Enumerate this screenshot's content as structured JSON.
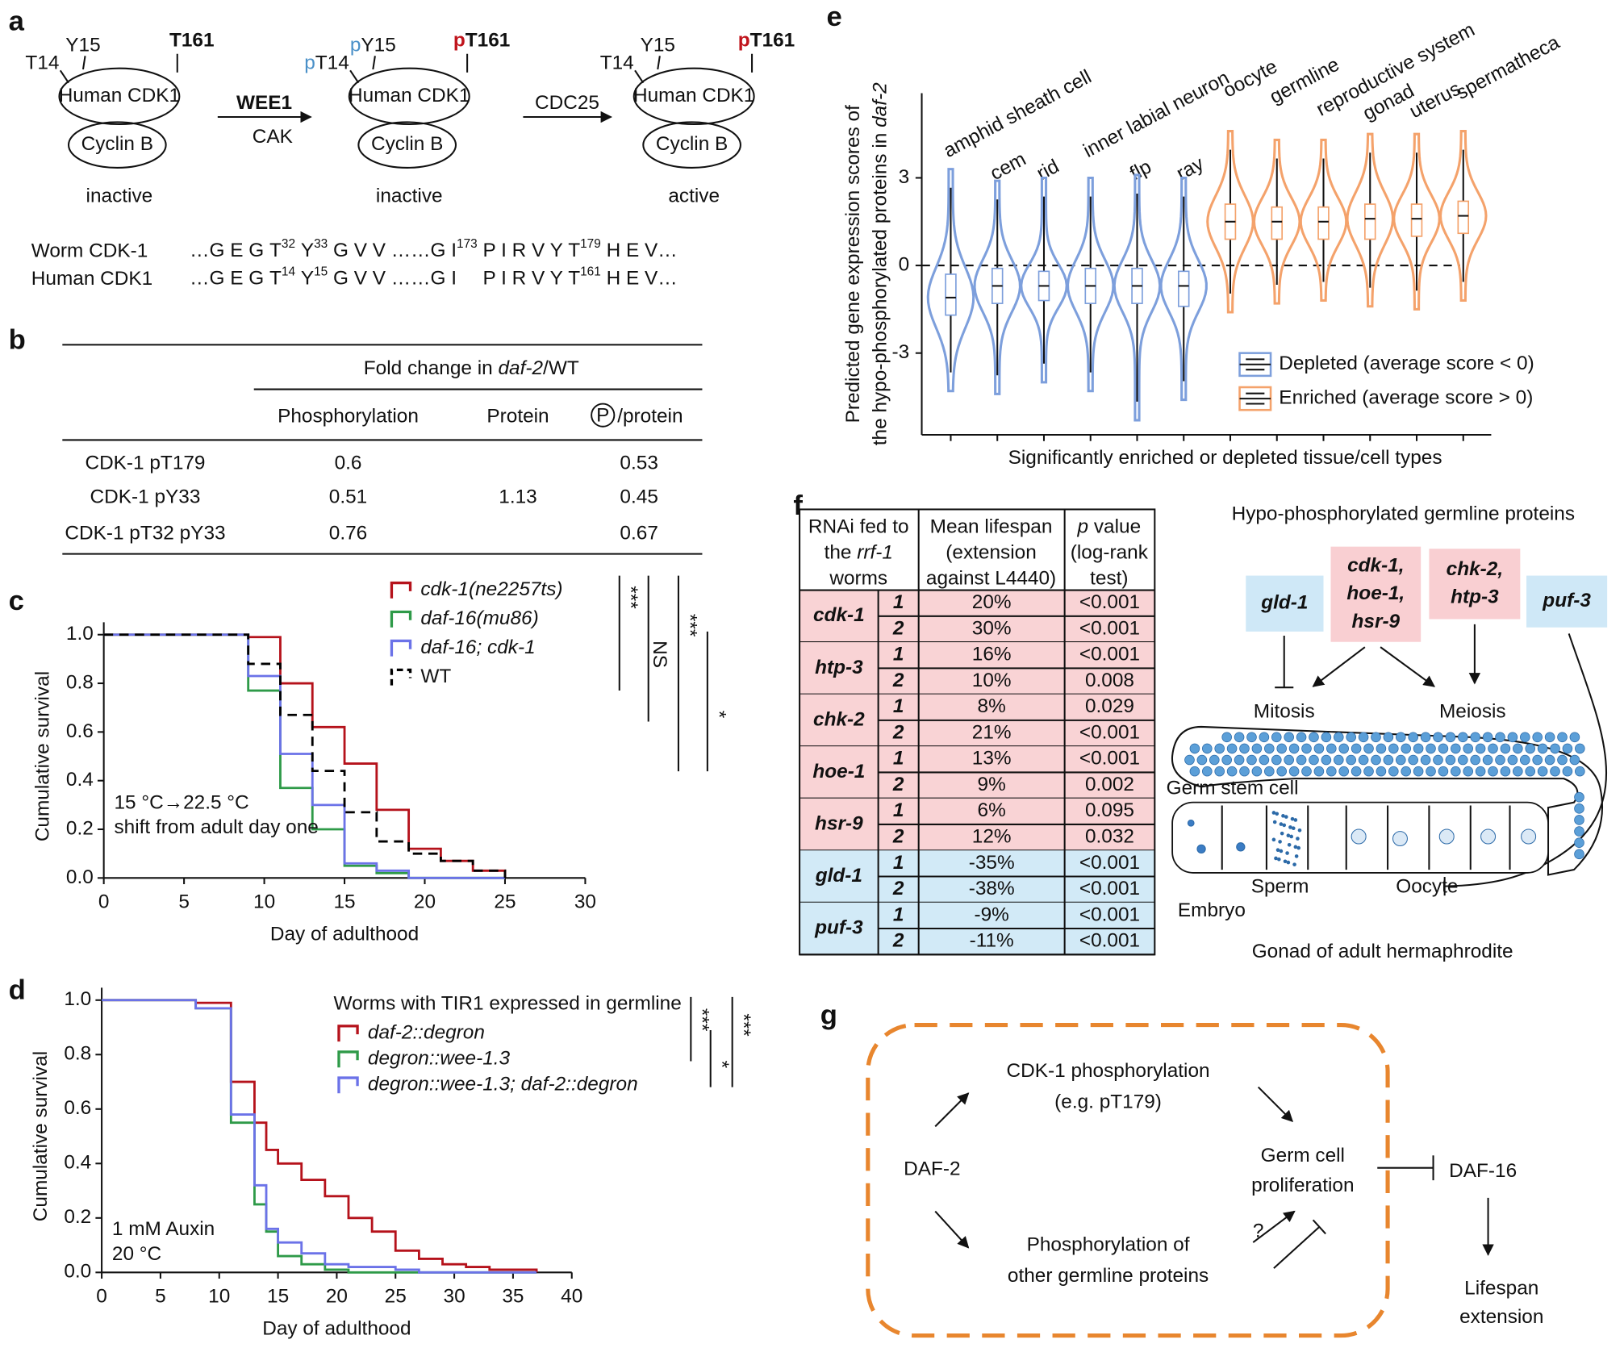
{
  "panel_labels": [
    "a",
    "b",
    "c",
    "d",
    "e",
    "f",
    "g"
  ],
  "panel_a": {
    "complexes": [
      {
        "kinase": "Human CDK1",
        "cyclin": "Cyclin B",
        "state": "inactive",
        "sites": [
          {
            "text": "T14"
          },
          {
            "text": "Y15"
          },
          {
            "text": "T161",
            "bold": true
          }
        ]
      },
      {
        "kinase": "Human CDK1",
        "cyclin": "Cyclin B",
        "state": "inactive",
        "sites": [
          {
            "p": "p",
            "p_color": "#4a90c8",
            "text": "T14"
          },
          {
            "p": "p",
            "p_color": "#4a90c8",
            "text": "Y15"
          },
          {
            "p": "p",
            "p_color": "#c0141c",
            "text": "T161",
            "bold": true
          }
        ]
      },
      {
        "kinase": "Human CDK1",
        "cyclin": "Cyclin B",
        "state": "active",
        "sites": [
          {
            "text": "T14"
          },
          {
            "text": "Y15"
          },
          {
            "p": "p",
            "p_color": "#c0141c",
            "text": "T161",
            "bold": true
          }
        ]
      }
    ],
    "arrows": [
      {
        "above": "WEE1",
        "above_color": "#c0141c",
        "below": "CAK",
        "below_color": "#4a90c8"
      },
      {
        "above": "CDC25"
      }
    ],
    "sequences": [
      {
        "name": "Worm CDK-1",
        "parts": [
          {
            "text": "…G E G "
          },
          {
            "text": "T",
            "sup": "32",
            "color": "#4a90c8"
          },
          {
            "text": " "
          },
          {
            "text": "Y",
            "sup": "33",
            "color": "#4a90c8"
          },
          {
            "text": " G V V ……G I",
            "sup": "173"
          },
          {
            "text": " P I R V Y "
          },
          {
            "text": "T",
            "sup": "179",
            "color": "#c0141c"
          },
          {
            "text": " H E V…"
          }
        ]
      },
      {
        "name": "Human CDK1",
        "parts": [
          {
            "text": "…G E G "
          },
          {
            "text": "T",
            "sup": "14",
            "color": "#4a90c8"
          },
          {
            "text": " "
          },
          {
            "text": "Y",
            "sup": "15",
            "color": "#4a90c8"
          },
          {
            "text": " G V V ……G I"
          },
          {
            "text": " P I R V Y "
          },
          {
            "text": "T",
            "sup": "161",
            "color": "#c0141c"
          },
          {
            "text": " H E V…"
          }
        ]
      }
    ]
  },
  "panel_b": {
    "header": [
      {
        "text": "Fold change in "
      },
      {
        "text": "daf-2",
        "italic": true
      },
      {
        "text": "/WT"
      }
    ],
    "columns": [
      "Phosphorylation",
      "Protein"
    ],
    "ratio_symbol": "P",
    "ratio_column": "/protein",
    "rows": [
      {
        "name": "CDK-1 pT179",
        "values": [
          0.6,
          null,
          0.53
        ]
      },
      {
        "name": "CDK-1 pY33",
        "values": [
          0.51,
          1.13,
          0.45
        ]
      },
      {
        "name": "CDK-1 pT32 pY33",
        "values": [
          0.76,
          null,
          0.67
        ]
      }
    ]
  },
  "chart_data": [
    {
      "type": "step",
      "x": [
        0,
        9,
        11,
        13,
        15,
        17,
        19,
        21,
        23,
        25
      ],
      "series": [
        {
          "name": "cdk-1(ne2257ts)",
          "italic": true,
          "color": "#b5121b",
          "values": [
            1.0,
            0.99,
            0.8,
            0.62,
            0.47,
            0.28,
            0.12,
            0.07,
            0.03,
            0
          ]
        },
        {
          "name": "daf-16(mu86)",
          "italic": true,
          "color": "#2e9a48",
          "values": [
            1.0,
            0.77,
            0.37,
            0.2,
            0.05,
            0.02,
            0,
            0,
            0,
            0
          ]
        },
        {
          "name": "daf-16; cdk-1",
          "italic": true,
          "color": "#6b72e8",
          "values": [
            1.0,
            0.83,
            0.51,
            0.3,
            0.06,
            0.03,
            0,
            0,
            0,
            0
          ]
        },
        {
          "name": "WT",
          "color": "#000000",
          "dashed": true,
          "values": [
            1.0,
            0.88,
            0.67,
            0.44,
            0.27,
            0.15,
            0.1,
            0.07,
            0.03,
            0
          ]
        }
      ],
      "xlim": [
        0,
        30
      ],
      "xticks": [
        0,
        5,
        10,
        15,
        20,
        25,
        30
      ],
      "ylim": [
        0,
        1
      ],
      "yticks": [
        {
          "value": 0,
          "label": "0.0"
        },
        0.2,
        0.4,
        0.6,
        0.8,
        {
          "value": 1,
          "label": "1.0"
        }
      ],
      "xlabel": "Day of adulthood",
      "ylabel": "Cumulative survival",
      "annotations": [
        "15 °C→22.5 °C",
        "shift from adult day one"
      ],
      "significance": [
        "***",
        "NS",
        "***",
        "*"
      ]
    },
    {
      "type": "step",
      "x": [
        0,
        8,
        11,
        13,
        14,
        15,
        17,
        19,
        21,
        23,
        25,
        27,
        29,
        31,
        33,
        35,
        37
      ],
      "legend_title": "Worms with TIR1 expressed in germline",
      "series": [
        {
          "name": "daf-2::degron",
          "italic": true,
          "color": "#b5121b",
          "values": [
            1.0,
            0.99,
            0.7,
            0.55,
            0.45,
            0.4,
            0.34,
            0.28,
            0.2,
            0.15,
            0.08,
            0.05,
            0.03,
            0.02,
            0.01,
            0.01,
            0
          ]
        },
        {
          "name": "degron::wee-1.3",
          "italic": true,
          "color": "#2e9a48",
          "values": [
            1.0,
            0.97,
            0.55,
            0.25,
            0.15,
            0.06,
            0.03,
            0.01,
            0,
            0,
            0,
            0,
            0,
            0,
            0,
            0,
            0
          ]
        },
        {
          "name": "degron::wee-1.3; daf-2::degron",
          "italic": true,
          "color": "#6b72e8",
          "values": [
            1.0,
            0.97,
            0.58,
            0.32,
            0.16,
            0.11,
            0.07,
            0.03,
            0.02,
            0.02,
            0.01,
            0,
            0,
            0,
            0,
            0,
            0
          ]
        }
      ],
      "xlim": [
        0,
        40
      ],
      "xticks": [
        0,
        5,
        10,
        15,
        20,
        25,
        30,
        35,
        40
      ],
      "ylim": [
        0,
        1
      ],
      "yticks": [
        {
          "value": 0,
          "label": "0.0"
        },
        0.2,
        0.4,
        0.6,
        0.8,
        {
          "value": 1,
          "label": "1.0"
        }
      ],
      "xlabel": "Day of adulthood",
      "ylabel": "Cumulative survival",
      "annotations": [
        "1 mM Auxin",
        "20 °C"
      ],
      "significance": [
        "***",
        "*",
        "***"
      ]
    },
    {
      "type": "violin",
      "series": [
        {
          "name": "Depleted (average score < 0)",
          "color": "#7d9fdc",
          "categories": [
            "amphid sheath cell",
            "cem",
            "rid",
            "inner labial neuron",
            "flp",
            "ray"
          ],
          "values": [
            -1.1,
            -0.7,
            -0.7,
            -0.7,
            -0.7,
            -0.7
          ],
          "q1": [
            -1.7,
            -1.3,
            -1.2,
            -1.3,
            -1.3,
            -1.4
          ],
          "q3": [
            -0.3,
            -0.1,
            -0.2,
            -0.1,
            -0.1,
            -0.2
          ],
          "min": [
            -4.3,
            -4.4,
            -4.0,
            -4.3,
            -5.3,
            -4.6
          ],
          "max": [
            3.3,
            2.9,
            3.0,
            3.0,
            3.1,
            3.0
          ]
        },
        {
          "name": "Enriched (average score > 0)",
          "color": "#f4a26b",
          "categories": [
            "oocyte",
            "germline",
            "reproductive system",
            "gonad",
            "uterus",
            "spermatheca"
          ],
          "values": [
            1.5,
            1.5,
            1.5,
            1.6,
            1.6,
            1.7
          ],
          "q1": [
            0.9,
            0.9,
            0.9,
            0.9,
            1.0,
            1.1
          ],
          "q3": [
            2.1,
            2.0,
            2.0,
            2.1,
            2.1,
            2.2
          ],
          "min": [
            -1.6,
            -1.3,
            -1.2,
            -1.4,
            -1.5,
            -1.2
          ],
          "max": [
            4.6,
            4.3,
            4.3,
            4.5,
            4.5,
            4.6
          ]
        }
      ],
      "ylim": [
        -5.8,
        5.9
      ],
      "yticks": [
        -3,
        0,
        3
      ],
      "hline": 0,
      "xlabel": "Significantly enriched or depleted tissue/cell types",
      "ylabel": [
        [
          {
            "text": "Predicted gene expression scores of"
          }
        ],
        [
          {
            "text": "the hypo-phosphorylated proteins in "
          },
          {
            "text": "daf-2",
            "italic": true
          }
        ]
      ]
    }
  ],
  "panel_f": {
    "header": [
      [
        [
          {
            "text": "RNAi fed to"
          }
        ],
        [
          {
            "text": "the "
          },
          {
            "text": "rrf-1",
            "italic": true
          }
        ],
        [
          {
            "text": "worms"
          }
        ]
      ],
      [
        [
          {
            "text": "Mean lifespan"
          }
        ],
        [
          {
            "text": "(extension"
          }
        ],
        [
          {
            "text": "against L4440)"
          }
        ]
      ],
      [
        [
          {
            "text": "p",
            "italic": true
          },
          {
            "text": " value"
          }
        ],
        [
          {
            "text": "(log-rank"
          }
        ],
        [
          {
            "text": "test)"
          }
        ]
      ]
    ],
    "rows": [
      {
        "gene": "cdk-1",
        "fill": "#f9d3d5",
        "replicates": [
          {
            "n": 1,
            "extension": "20%",
            "p": "<0.001"
          },
          {
            "n": 2,
            "extension": "30%",
            "p": "<0.001"
          }
        ]
      },
      {
        "gene": "htp-3",
        "fill": "#f9d3d5",
        "replicates": [
          {
            "n": 1,
            "extension": "16%",
            "p": "<0.001"
          },
          {
            "n": 2,
            "extension": "10%",
            "p": "0.008"
          }
        ]
      },
      {
        "gene": "chk-2",
        "fill": "#f9d3d5",
        "replicates": [
          {
            "n": 1,
            "extension": "8%",
            "p": "0.029"
          },
          {
            "n": 2,
            "extension": "21%",
            "p": "<0.001"
          }
        ]
      },
      {
        "gene": "hoe-1",
        "fill": "#f9d3d5",
        "replicates": [
          {
            "n": 1,
            "extension": "13%",
            "p": "<0.001"
          },
          {
            "n": 2,
            "extension": "9%",
            "p": "0.002"
          }
        ]
      },
      {
        "gene": "hsr-9",
        "fill": "#f9d3d5",
        "replicates": [
          {
            "n": 1,
            "extension": "6%",
            "p": "0.095"
          },
          {
            "n": 2,
            "extension": "12%",
            "p": "0.032"
          }
        ]
      },
      {
        "gene": "gld-1",
        "fill": "#d2eaf7",
        "replicates": [
          {
            "n": 1,
            "extension": "-35%",
            "p": "<0.001"
          },
          {
            "n": 2,
            "extension": "-38%",
            "p": "<0.001"
          }
        ]
      },
      {
        "gene": "puf-3",
        "fill": "#d2eaf7",
        "replicates": [
          {
            "n": 1,
            "extension": "-9%",
            "p": "<0.001"
          },
          {
            "n": 2,
            "extension": "-11%",
            "p": "<0.001"
          }
        ]
      }
    ],
    "diagram": {
      "title": "Hypo-phosphorylated germline proteins",
      "proteins": [
        {
          "lines": [
            "gld-1"
          ],
          "fill": "#cfe8f7"
        },
        {
          "lines": [
            "cdk-1,",
            "hoe-1,",
            "hsr-9"
          ],
          "fill": "#f9cfd2"
        },
        {
          "lines": [
            "chk-2,",
            "htp-3"
          ],
          "fill": "#f9cfd2"
        },
        {
          "lines": [
            "puf-3"
          ],
          "fill": "#cfe8f7"
        }
      ],
      "processes": [
        "Mitosis",
        "Meiosis"
      ],
      "gonad_labels": [
        "Germ stem cell",
        "Sperm",
        "Embryo",
        "Oocyte"
      ],
      "caption": "Gonad of adult hermaphrodite"
    }
  },
  "panel_g": {
    "daf2": "DAF-2",
    "cdk1": [
      "CDK-1 phosphorylation",
      "(e.g. pT179)"
    ],
    "other": [
      "Phosphorylation of",
      "other germline proteins"
    ],
    "prolif": [
      "Germ cell",
      "proliferation"
    ],
    "question": "?",
    "daf16": "DAF-16",
    "lifespan": [
      "Lifespan",
      "extension"
    ]
  }
}
